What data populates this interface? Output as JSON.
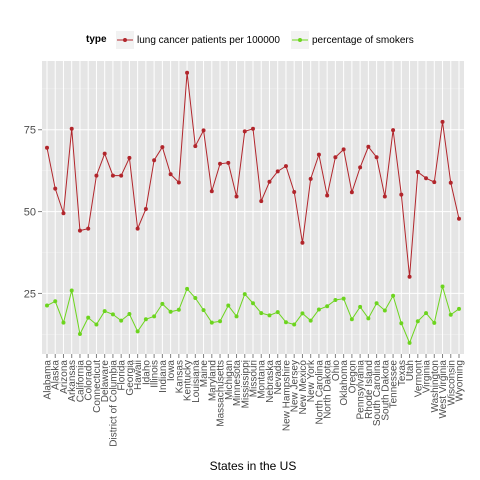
{
  "chart_data": {
    "type": "line",
    "xlabel": "States in the US",
    "ylabel": "",
    "ylim": [
      6.5,
      96
    ],
    "yticks": [
      25,
      50,
      75
    ],
    "grid": true,
    "legend": {
      "title": "type",
      "position": "top"
    },
    "categories": [
      "Alabama",
      "Alaska",
      "Arizona",
      "Arkansas",
      "California",
      "Colorado",
      "Connecticut",
      "Delaware",
      "District of Columbia",
      "Florida",
      "Georgia",
      "Hawaii",
      "Idaho",
      "Illinois",
      "Indiana",
      "Iowa",
      "Kansas",
      "Kentucky",
      "Louisiana",
      "Maine",
      "Maryland",
      "Massachusetts",
      "Michigan",
      "Minnesota",
      "Mississippi",
      "Missouri",
      "Montana",
      "Nebraska",
      "Nevada",
      "New Hampshire",
      "New Jersey",
      "New Mexico",
      "New York",
      "North Carolina",
      "North Dakota",
      "Ohio",
      "Oklahoma",
      "Oregon",
      "Pennsylvania",
      "Rhode Island",
      "South Carolina",
      "South Dakota",
      "Tennessee",
      "Texas",
      "Utah",
      "Vermont",
      "Virginia",
      "Washington",
      "West Virginia",
      "Wisconsin",
      "Wyoming"
    ],
    "series": [
      {
        "name": "lung cancer patients per 100000",
        "color": "#b2262c",
        "values": [
          69.5,
          57,
          49.5,
          75.3,
          44.2,
          44.8,
          61,
          67.7,
          61,
          61,
          66.4,
          44.8,
          50.8,
          65.7,
          69.7,
          61.4,
          58.9,
          92.4,
          70,
          74.8,
          56.2,
          64.6,
          64.9,
          54.6,
          74.5,
          75.3,
          53.2,
          59.1,
          62.3,
          63.9,
          56,
          40.5,
          60,
          67.4,
          54.9,
          66.6,
          69,
          55.9,
          63.5,
          69.8,
          66.6,
          54.6,
          74.9,
          55.2,
          30.1,
          62.1,
          60.2,
          59,
          77.4,
          58.8,
          47.8
        ]
      },
      {
        "name": "percentage of smokers",
        "color": "#6dd51f",
        "values": [
          21.3,
          22.6,
          16.1,
          25.9,
          12.6,
          17.6,
          15.5,
          19.6,
          18.6,
          16.7,
          18.7,
          13.4,
          17.1,
          18,
          21.8,
          19.4,
          20,
          26.4,
          23.6,
          19.9,
          16.1,
          16.5,
          21.3,
          18,
          24.8,
          22,
          19,
          18.3,
          19.3,
          16.2,
          15.5,
          18.9,
          16.7,
          20.1,
          21.1,
          23,
          23.4,
          17.1,
          20.9,
          17.4,
          22,
          19.8,
          24.3,
          15.9,
          9.9,
          16.5,
          19,
          16,
          27.1,
          18.5,
          20.3
        ]
      }
    ]
  }
}
